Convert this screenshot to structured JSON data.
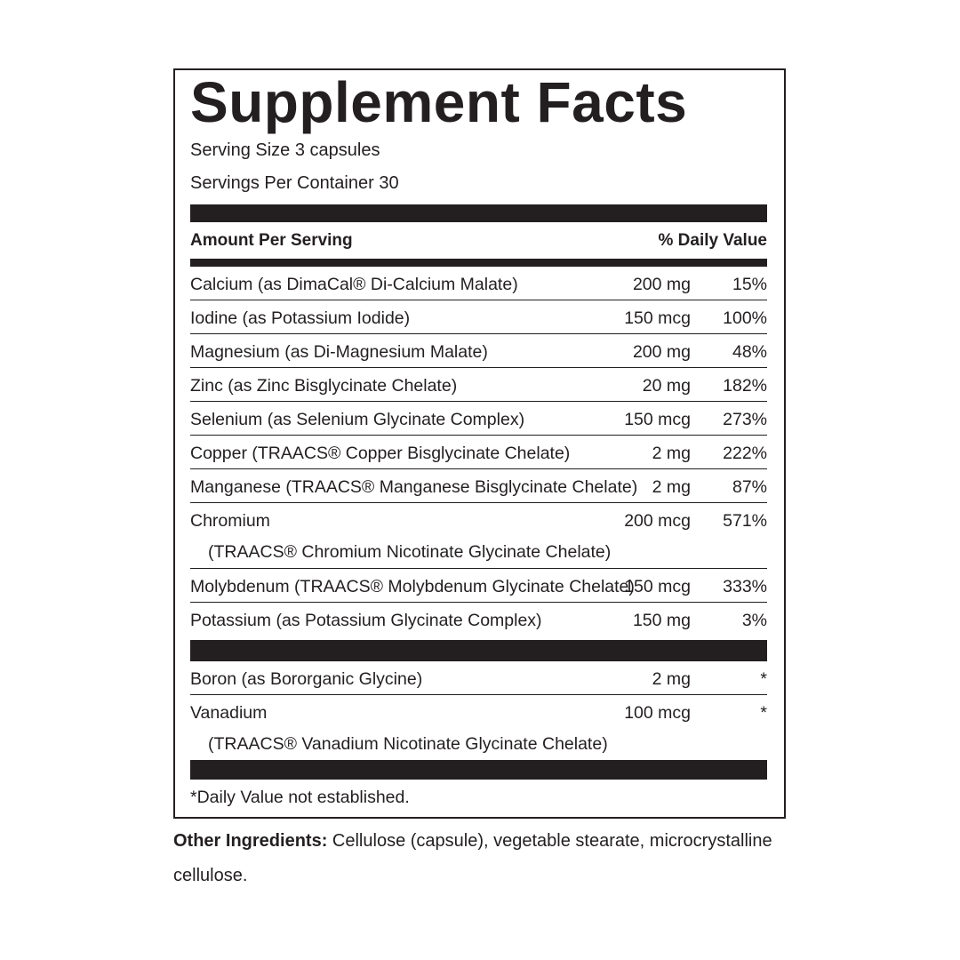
{
  "label": {
    "title": "Supplement Facts",
    "serving_size": "Serving Size 3 capsules",
    "servings_per_container": "Servings Per Container 30",
    "header": {
      "amount": "Amount Per Serving",
      "daily_value": "% Daily Value"
    },
    "groups": [
      {
        "rows": [
          {
            "name": "Calcium (as DimaCal® Di-Calcium Malate)",
            "amount": "200 mg",
            "dv": "15%"
          },
          {
            "name": "Iodine (as Potassium Iodide)",
            "amount": "150 mcg",
            "dv": "100%"
          },
          {
            "name": "Magnesium (as Di-Magnesium Malate)",
            "amount": "200 mg",
            "dv": "48%"
          },
          {
            "name": "Zinc (as Zinc Bisglycinate Chelate)",
            "amount": "20 mg",
            "dv": "182%"
          },
          {
            "name": "Selenium (as Selenium Glycinate Complex)",
            "amount": "150 mcg",
            "dv": "273%"
          },
          {
            "name": "Copper (TRAACS® Copper Bisglycinate Chelate)",
            "amount": "2 mg",
            "dv": "222%"
          },
          {
            "name": "Manganese (TRAACS® Manganese Bisglycinate Chelate)",
            "amount": "2 mg",
            "dv": "87%"
          },
          {
            "name": "Chromium",
            "sub": "(TRAACS® Chromium Nicotinate Glycinate Chelate)",
            "amount": "200 mcg",
            "dv": "571%"
          },
          {
            "name": "Molybdenum (TRAACS® Molybdenum Glycinate Chelate)",
            "amount": "150 mcg",
            "dv": "333%"
          },
          {
            "name": "Potassium (as Potassium Glycinate Complex)",
            "amount": "150 mg",
            "dv": "3%"
          }
        ]
      },
      {
        "rows": [
          {
            "name": "Boron (as Bororganic Glycine)",
            "amount": "2 mg",
            "dv": "*"
          },
          {
            "name": "Vanadium",
            "sub": "(TRAACS® Vanadium Nicotinate Glycinate Chelate)",
            "amount": "100 mcg",
            "dv": "*"
          }
        ]
      }
    ],
    "footnote": "*Daily Value not established."
  },
  "other_ingredients": {
    "label": "Other Ingredients:",
    "text": "Cellulose (capsule), vegetable stearate, microcrystalline cellulose."
  }
}
